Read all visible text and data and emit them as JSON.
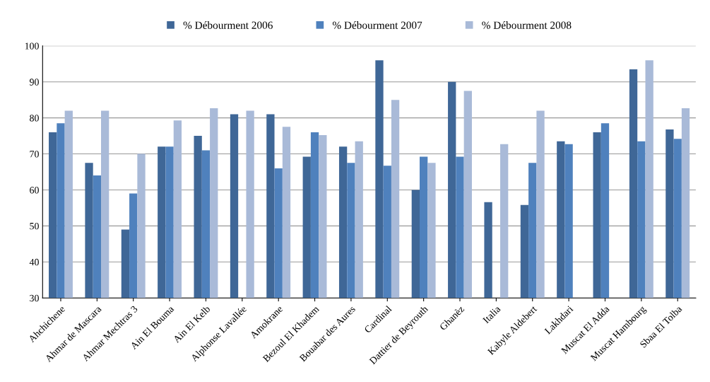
{
  "chart_data": {
    "type": "bar",
    "categories": [
      "Ahchichene",
      "Ahmar de Mascara",
      "Ahmar Mechtras 3",
      "Ain El Bouma",
      "Ain El Kelb",
      "Alphonse Lavallée",
      "Amokrane",
      "Bezoul El Khadem",
      "Bouabar des Aures",
      "Cardinal",
      "Dattier de Beyrouth",
      "Ghanèz",
      "Italia",
      "Kabyle Aldebert",
      "Lakhdari",
      "Muscat El Adda",
      "Muscat Hambourg",
      "Sbaa El Tolba"
    ],
    "series": [
      {
        "name": "% Débourment 2006",
        "color": "#3f6797",
        "values": [
          76,
          67.5,
          49,
          72,
          75,
          81,
          81,
          69.2,
          72,
          96,
          60,
          90,
          56.6,
          55.8,
          73.5,
          76,
          93.5,
          76.8
        ]
      },
      {
        "name": "% Débourment 2007",
        "color": "#4f81bd",
        "values": [
          78.5,
          64,
          59,
          72,
          71,
          null,
          66,
          76,
          67.5,
          66.7,
          69.2,
          69.2,
          null,
          67.5,
          72.7,
          78.5,
          73.5,
          74.2
        ]
      },
      {
        "name": "% Débourment 2008",
        "color": "#a9bad8",
        "values": [
          82,
          82,
          70,
          79.3,
          82.7,
          82,
          77.5,
          75.2,
          73.5,
          85,
          67.5,
          87.5,
          72.7,
          82,
          null,
          null,
          96,
          82.7
        ]
      }
    ],
    "ylim": [
      30,
      100
    ],
    "yticks": [
      30,
      40,
      50,
      60,
      70,
      80,
      90,
      100
    ],
    "grid": "y",
    "legend": "top"
  }
}
